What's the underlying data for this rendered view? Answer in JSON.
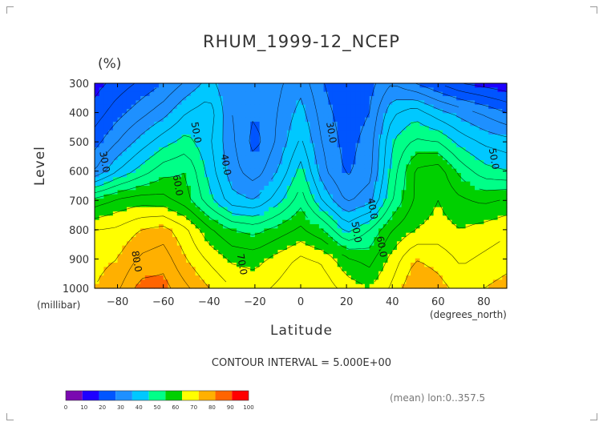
{
  "chart_data": {
    "type": "heatmap",
    "title": "RHUM_1999-12_NCEP",
    "units": "(%)",
    "xlabel": "Latitude",
    "ylabel": "Level",
    "x_unit": "(degrees_north)",
    "y_unit": "(millibar)",
    "xlim": [
      -90,
      90
    ],
    "ylim": [
      1000,
      300
    ],
    "x_ticks": [
      -80,
      -60,
      -40,
      -20,
      0,
      20,
      40,
      60,
      80
    ],
    "x_tick_labels": [
      "−80",
      "−60",
      "−40",
      "−20",
      "0",
      "20",
      "40",
      "60",
      "80"
    ],
    "y_ticks": [
      300,
      400,
      500,
      600,
      700,
      800,
      900,
      1000
    ],
    "y_tick_labels": [
      "300",
      "400",
      "500",
      "600",
      "700",
      "800",
      "900",
      "1000"
    ],
    "contour_interval": 5,
    "contour_labels": [
      {
        "text": "30.0",
        "lat": -87,
        "level": 570
      },
      {
        "text": "50.0",
        "lat": -47,
        "level": 470
      },
      {
        "text": "60.0",
        "lat": -55,
        "level": 650
      },
      {
        "text": "80.0",
        "lat": -73,
        "level": 910
      },
      {
        "text": "40.0",
        "lat": -34,
        "level": 580
      },
      {
        "text": "70.0",
        "lat": -27,
        "level": 920
      },
      {
        "text": "30.0",
        "lat": 12,
        "level": 470
      },
      {
        "text": "40.0",
        "lat": 30,
        "level": 730
      },
      {
        "text": "50.0",
        "lat": 23,
        "level": 810
      },
      {
        "text": "60.0",
        "lat": 34,
        "level": 860
      },
      {
        "text": "50.0",
        "lat": 83,
        "level": 560
      }
    ],
    "field_sample": {
      "lat": [
        -90,
        -80,
        -70,
        -60,
        -50,
        -40,
        -30,
        -20,
        -10,
        0,
        10,
        20,
        30,
        40,
        50,
        60,
        70,
        80,
        90
      ],
      "level": [
        300,
        400,
        500,
        600,
        700,
        800,
        900,
        1000
      ],
      "values": [
        [
          18,
          22,
          26,
          30,
          36,
          42,
          35,
          30,
          34,
          38,
          30,
          25,
          28,
          35,
          30,
          25,
          20,
          18,
          16
        ],
        [
          22,
          28,
          33,
          38,
          45,
          48,
          35,
          30,
          35,
          42,
          32,
          27,
          30,
          44,
          48,
          42,
          38,
          34,
          30
        ],
        [
          28,
          35,
          42,
          48,
          52,
          46,
          36,
          28,
          36,
          46,
          34,
          28,
          32,
          50,
          56,
          55,
          48,
          44,
          42
        ],
        [
          35,
          45,
          52,
          58,
          60,
          48,
          37,
          32,
          40,
          52,
          36,
          29,
          33,
          52,
          66,
          68,
          58,
          52,
          50
        ],
        [
          62,
          66,
          68,
          67,
          62,
          52,
          42,
          40,
          48,
          58,
          44,
          34,
          38,
          55,
          66,
          70,
          66,
          64,
          66
        ],
        [
          75,
          76,
          80,
          82,
          76,
          66,
          60,
          58,
          62,
          66,
          60,
          48,
          55,
          65,
          70,
          72,
          70,
          72,
          74
        ],
        [
          78,
          80,
          86,
          88,
          80,
          74,
          69,
          68,
          72,
          76,
          74,
          66,
          63,
          72,
          80,
          78,
          74,
          76,
          78
        ],
        [
          80,
          84,
          92,
          92,
          86,
          80,
          75,
          73,
          76,
          80,
          78,
          73,
          70,
          76,
          85,
          82,
          78,
          80,
          82
        ]
      ]
    },
    "colorbar": {
      "ticks": [
        "0",
        "10",
        "20",
        "30",
        "40",
        "50",
        "60",
        "70",
        "80",
        "90",
        "100"
      ],
      "colors": [
        "#7a0ab0",
        "#1e00ff",
        "#0055ff",
        "#1e90ff",
        "#00c8ff",
        "#00ff88",
        "#00d000",
        "#ffff00",
        "#ffb000",
        "#ff6400",
        "#ff0000"
      ]
    },
    "grid": false
  },
  "annotations": {
    "contour_interval_text": "CONTOUR INTERVAL = 5.000E+00",
    "mean_note": "(mean) lon:0..357.5"
  }
}
